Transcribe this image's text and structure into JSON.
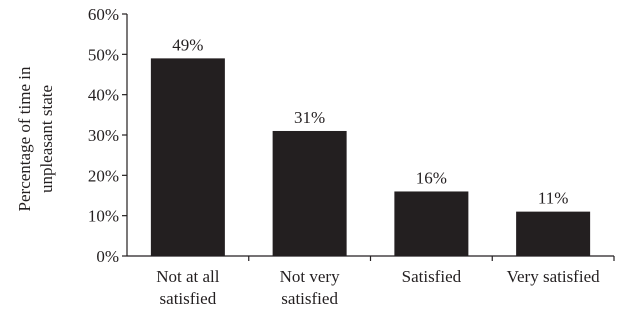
{
  "chart_data": {
    "type": "bar",
    "categories": [
      [
        "Not at all",
        "satisfied"
      ],
      [
        "Not very",
        "satisfied"
      ],
      [
        "Satisfied"
      ],
      [
        "Very satisfied"
      ]
    ],
    "values": [
      49,
      31,
      16,
      11
    ],
    "data_labels": [
      "49%",
      "31%",
      "16%",
      "11%"
    ],
    "title": "",
    "xlabel": "",
    "ylabel": [
      "Percentage of time in",
      "unpleasant state"
    ],
    "ylim": [
      0,
      60
    ],
    "yticks": [
      0,
      10,
      20,
      30,
      40,
      50,
      60
    ],
    "ytick_labels": [
      "0%",
      "10%",
      "20%",
      "30%",
      "40%",
      "50%",
      "60%"
    ],
    "bar_color": "#231f20",
    "grid": false,
    "legend": "none"
  }
}
